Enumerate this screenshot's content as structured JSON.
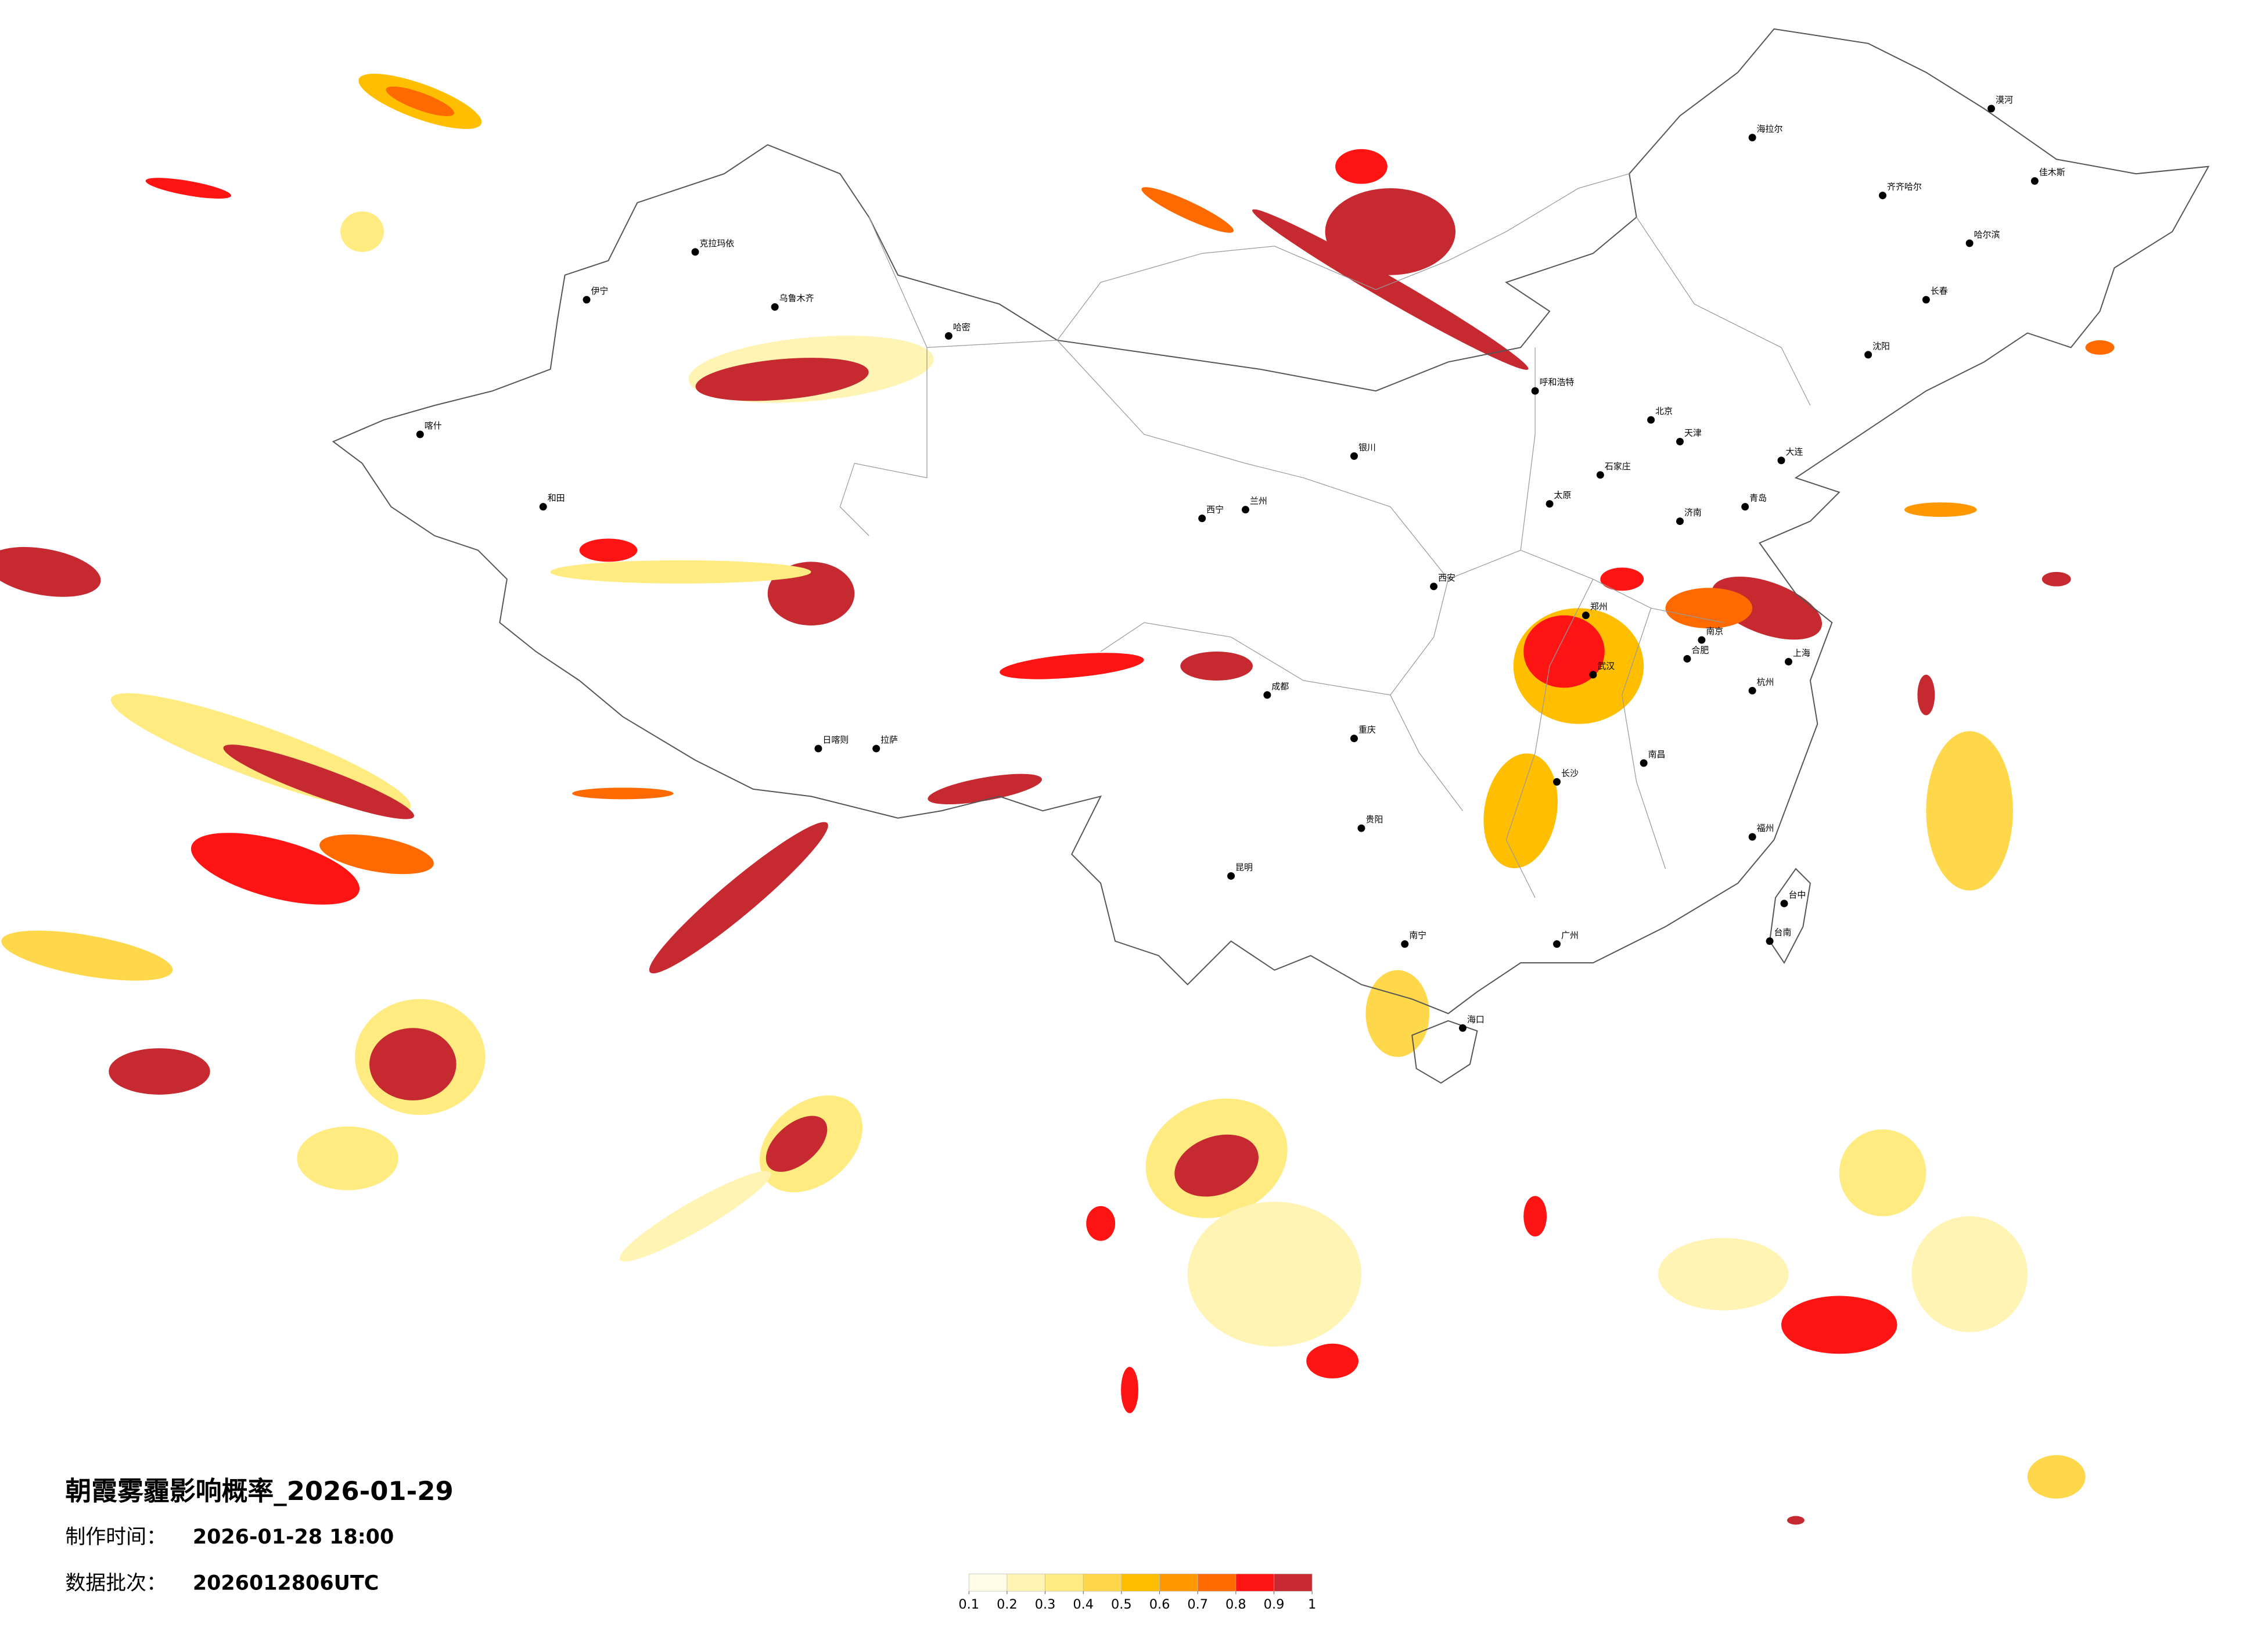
{
  "title": "朝霞雾霾影响概率_2026-01-29",
  "production_time": {
    "label": "制作时间：",
    "value": "2026-01-28 18:00"
  },
  "data_batch": {
    "label": "数据批次：",
    "value": "2026012806UTC"
  },
  "colorbar": {
    "ticks": [
      0.1,
      0.2,
      0.3,
      0.4,
      0.5,
      0.6,
      0.7,
      0.8,
      0.9,
      1
    ],
    "colors": [
      "#fffbe4",
      "#fff4b4",
      "#ffeb80",
      "#ffd74a",
      "#ffbf00",
      "#ff9800",
      "#ff6a00",
      "#ff1414",
      "#c62a30"
    ]
  },
  "cities": [
    "漠河",
    "海拉尔",
    "齐齐哈尔",
    "哈尔滨",
    "长春",
    "沈阳",
    "佳木斯",
    "呼和浩特",
    "北京",
    "天津",
    "石家庄",
    "太原",
    "济南",
    "郑州",
    "西安",
    "兰州",
    "西宁",
    "银川",
    "乌鲁木齐",
    "克拉玛依",
    "伊宁",
    "哈密",
    "喀什",
    "和田",
    "拉萨",
    "日喀则",
    "成都",
    "重庆",
    "贵阳",
    "昆明",
    "南宁",
    "广州",
    "武汉",
    "长沙",
    "南昌",
    "杭州",
    "南京",
    "上海",
    "福州",
    "台中",
    "台南",
    "海口",
    "大连",
    "青岛",
    "合肥"
  ]
}
